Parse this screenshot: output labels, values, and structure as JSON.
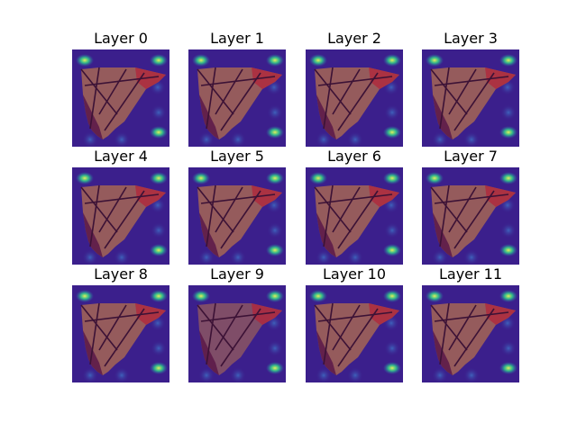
{
  "figure": {
    "panels": [
      {
        "title": "Layer 0"
      },
      {
        "title": "Layer 1"
      },
      {
        "title": "Layer 2"
      },
      {
        "title": "Layer 3"
      },
      {
        "title": "Layer 4"
      },
      {
        "title": "Layer 5"
      },
      {
        "title": "Layer 6"
      },
      {
        "title": "Layer 7"
      },
      {
        "title": "Layer 8"
      },
      {
        "title": "Layer 9"
      },
      {
        "title": "Layer 10"
      },
      {
        "title": "Layer 11"
      }
    ],
    "colors": {
      "background": "#3b1f8c",
      "kite_warm": "#b8734a",
      "kite_red": "#b3243a",
      "kite_dark": "#5a1848",
      "frame_line": "#3c1236",
      "hotspot": "#2fd28a"
    }
  }
}
